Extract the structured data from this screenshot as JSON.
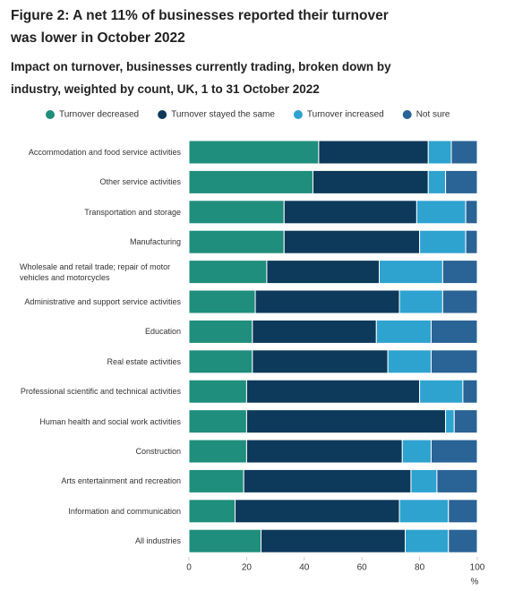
{
  "chart_data": {
    "type": "stacked-bar-horizontal",
    "title": "Figure 2: A net 11% of businesses reported their turnover was lower in October 2022",
    "subtitle": "Impact on turnover, businesses currently trading, broken down by industry, weighted by count, UK, 1 to 31 October 2022",
    "x_label": "%",
    "categories": [
      "Accommodation and food service activities",
      "Other service activities",
      "Transportation and storage",
      "Manufacturing",
      "Wholesale and retail trade; repair of motor vehicles and motorcycles",
      "Administrative and support service activities",
      "Education",
      "Real estate activities",
      "Professional scientific and technical activities",
      "Human health and social work activities",
      "Construction",
      "Arts entertainment and recreation",
      "Information and communication",
      "All industries"
    ],
    "series": [
      {
        "name": "Turnover decreased",
        "color": "#1f8e7c",
        "values": [
          45,
          43,
          33,
          33,
          27,
          23,
          22,
          22,
          20,
          20,
          20,
          19,
          16,
          25
        ]
      },
      {
        "name": "Turnover stayed the same",
        "color": "#0d3a5b",
        "values": [
          38,
          40,
          46,
          47,
          39,
          50,
          43,
          47,
          60,
          69,
          54,
          58,
          57,
          50
        ]
      },
      {
        "name": "Turnover increased",
        "color": "#2ea3d0",
        "values": [
          8,
          6,
          17,
          16,
          22,
          15,
          19,
          15,
          15,
          3,
          10,
          9,
          17,
          15
        ]
      },
      {
        "name": "Not sure",
        "color": "#2a6395",
        "values": [
          9,
          11,
          4,
          4,
          12,
          12,
          16,
          16,
          5,
          8,
          16,
          14,
          10,
          10
        ]
      }
    ],
    "xlim": [
      0,
      100
    ],
    "xticks": [
      0,
      20,
      40,
      60,
      80,
      100
    ],
    "grid": false
  }
}
